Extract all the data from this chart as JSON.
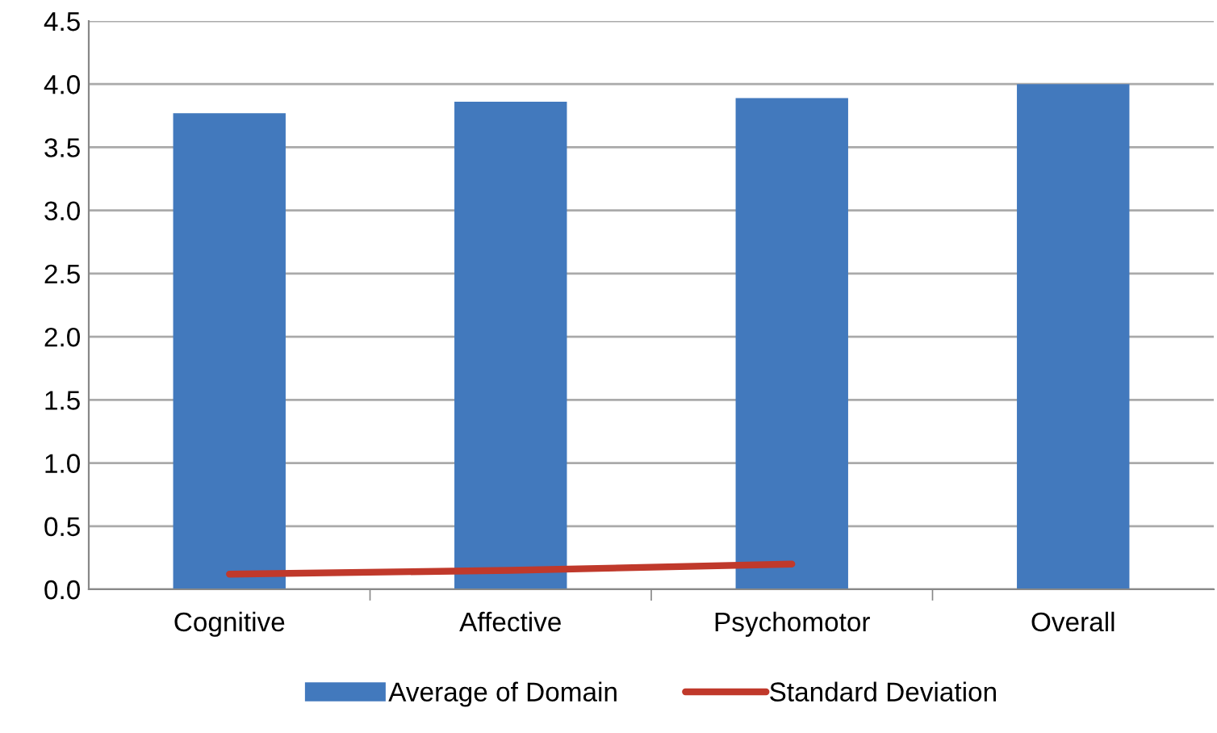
{
  "chart_data": {
    "type": "bar",
    "categories": [
      "Cognitive",
      "Affective",
      "Psychomotor",
      "Overall"
    ],
    "series": [
      {
        "name": "Average of Domain",
        "color": "#4279bd",
        "values": [
          3.77,
          3.86,
          3.89,
          4.0
        ]
      },
      {
        "name": "Standard Deviation",
        "color": "#c0392b",
        "type": "line",
        "values": [
          0.12,
          0.15,
          0.2,
          null
        ]
      }
    ],
    "ylim": [
      0,
      4.5
    ],
    "yticks": [
      {
        "value": 0,
        "label": "0.0"
      },
      {
        "value": 0.5,
        "label": "0.5"
      },
      {
        "value": 1,
        "label": "1.0"
      },
      {
        "value": 1.5,
        "label": "1.5"
      },
      {
        "value": 2,
        "label": "2.0"
      },
      {
        "value": 2.5,
        "label": "2.5"
      },
      {
        "value": 3,
        "label": "3.0"
      },
      {
        "value": 3.5,
        "label": "3.5"
      },
      {
        "value": 4,
        "label": "4.0"
      },
      {
        "value": 4.5,
        "label": "4.5"
      }
    ],
    "grid": "y",
    "legend": "bottom"
  }
}
